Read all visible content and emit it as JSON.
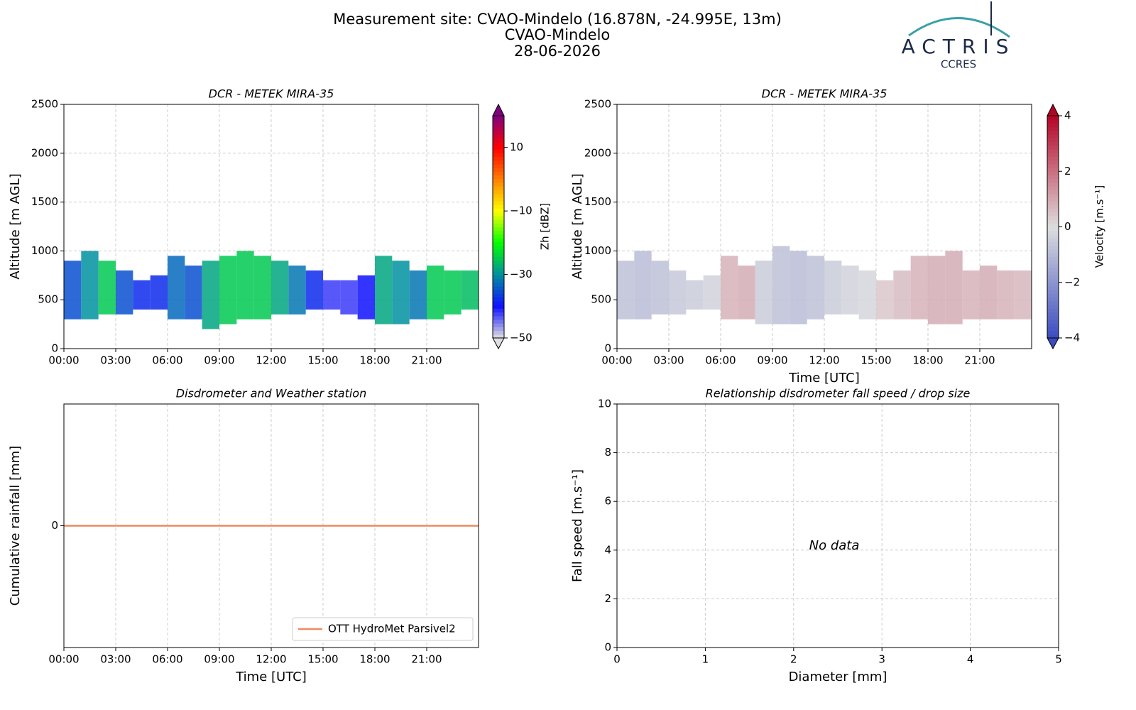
{
  "header": {
    "title": "Measurement site: CVAO-Mindelo (16.878N, -24.995E, 13m)",
    "subtitle": "CVAO-Mindelo",
    "date": "28-06-2026",
    "logo": "ACTRIS",
    "logo_sub": "CCRES"
  },
  "chart_data": [
    {
      "type": "heatmap",
      "title": "DCR - METEK MIRA-35",
      "ylabel": "Altitude [m AGL]",
      "x": [
        0.5,
        1.5,
        2.5,
        3.5,
        4.5,
        5.5,
        6.5,
        7.5,
        8.5,
        9.5,
        10.5,
        11.5,
        12.5,
        13.5,
        14.5,
        15.5,
        16.5,
        17.5,
        18.5,
        19.5,
        20.5,
        21.5,
        22.5,
        23.5
      ],
      "base": [
        300,
        300,
        350,
        350,
        400,
        400,
        300,
        300,
        200,
        250,
        300,
        300,
        350,
        350,
        400,
        400,
        350,
        300,
        250,
        250,
        300,
        300,
        350,
        400
      ],
      "top": [
        900,
        1000,
        900,
        800,
        700,
        750,
        950,
        850,
        900,
        950,
        1000,
        950,
        900,
        850,
        800,
        700,
        700,
        750,
        950,
        900,
        800,
        850,
        800,
        800
      ],
      "values": [
        -35,
        -30,
        -25,
        -35,
        -38,
        -38,
        -33,
        -35,
        -28,
        -25,
        -25,
        -25,
        -28,
        -32,
        -38,
        -42,
        -42,
        -40,
        -28,
        -30,
        -32,
        -25,
        -25,
        -26
      ],
      "xlim": [
        0,
        24
      ],
      "xticks": [
        {
          "value": 0,
          "label": "00:00"
        },
        {
          "value": 3,
          "label": "03:00"
        },
        {
          "value": 6,
          "label": "06:00"
        },
        {
          "value": 9,
          "label": "09:00"
        },
        {
          "value": 12,
          "label": "12:00"
        },
        {
          "value": 15,
          "label": "15:00"
        },
        {
          "value": 18,
          "label": "18:00"
        },
        {
          "value": 21,
          "label": "21:00"
        }
      ],
      "ylim": [
        0,
        2500
      ],
      "yticks": [
        0,
        500,
        1000,
        1500,
        2000,
        2500
      ],
      "grid": true,
      "colorbar_label": "Zh [dBZ]",
      "clim": [
        -50,
        20
      ],
      "cticks": [
        {
          "value": -50,
          "label": "−50"
        },
        {
          "value": -30,
          "label": "−30"
        },
        {
          "value": -10,
          "label": "−10"
        },
        10
      ],
      "colormap": [
        "#e0e0e0",
        "#1010ff",
        "#0090a0",
        "#00ff00",
        "#ffff00",
        "#ff8000",
        "#ff0000",
        "#800080"
      ]
    },
    {
      "type": "heatmap",
      "title": "DCR - METEK MIRA-35",
      "ylabel": "Altitude [m AGL]",
      "xlabel": "Time [UTC]",
      "x": [
        0.5,
        1.5,
        2.5,
        3.5,
        4.5,
        5.5,
        6.5,
        7.5,
        8.5,
        9.5,
        10.5,
        11.5,
        12.5,
        13.5,
        14.5,
        15.5,
        16.5,
        17.5,
        18.5,
        19.5,
        20.5,
        21.5,
        22.5,
        23.5
      ],
      "base": [
        300,
        300,
        350,
        350,
        400,
        400,
        300,
        300,
        250,
        250,
        250,
        300,
        350,
        350,
        300,
        300,
        300,
        300,
        250,
        250,
        300,
        300,
        300,
        300
      ],
      "top": [
        900,
        1000,
        900,
        800,
        700,
        750,
        950,
        850,
        900,
        1050,
        1000,
        950,
        900,
        850,
        800,
        700,
        800,
        950,
        950,
        1000,
        800,
        850,
        800,
        800
      ],
      "values": [
        -0.8,
        -0.9,
        -0.8,
        -0.6,
        -0.5,
        -0.3,
        0.8,
        0.9,
        -0.5,
        -0.8,
        -0.9,
        -0.8,
        -0.5,
        -0.3,
        -0.2,
        0.4,
        0.6,
        0.8,
        0.9,
        0.9,
        0.8,
        0.9,
        0.8,
        0.7
      ],
      "xlim": [
        0,
        24
      ],
      "xticks": [
        {
          "value": 0,
          "label": "00:00"
        },
        {
          "value": 3,
          "label": "03:00"
        },
        {
          "value": 6,
          "label": "06:00"
        },
        {
          "value": 9,
          "label": "09:00"
        },
        {
          "value": 12,
          "label": "12:00"
        },
        {
          "value": 15,
          "label": "15:00"
        },
        {
          "value": 18,
          "label": "18:00"
        },
        {
          "value": 21,
          "label": "21:00"
        }
      ],
      "ylim": [
        0,
        2500
      ],
      "yticks": [
        0,
        500,
        1000,
        1500,
        2000,
        2500
      ],
      "grid": true,
      "colorbar_label": "Velocity [m.s⁻¹]",
      "clim": [
        -4,
        4
      ],
      "cticks": [
        {
          "value": -4,
          "label": "−4"
        },
        {
          "value": -2,
          "label": "−2"
        },
        0,
        2,
        4
      ],
      "colormap": [
        "#3b4cc0",
        "#dddddd",
        "#b40426"
      ]
    },
    {
      "type": "line",
      "title": "Disdrometer and Weather station",
      "ylabel": "Cumulative rainfall [mm]",
      "xlabel": "Time [UTC]",
      "x": [
        0,
        24
      ],
      "series": [
        {
          "name": "OTT HydroMet Parsivel2",
          "color": "#ee8a62",
          "values": [
            0,
            0
          ]
        }
      ],
      "xlim": [
        0,
        24
      ],
      "xticks": [
        {
          "value": 0,
          "label": "00:00"
        },
        {
          "value": 3,
          "label": "03:00"
        },
        {
          "value": 6,
          "label": "06:00"
        },
        {
          "value": 9,
          "label": "09:00"
        },
        {
          "value": 12,
          "label": "12:00"
        },
        {
          "value": 15,
          "label": "15:00"
        },
        {
          "value": 18,
          "label": "18:00"
        },
        {
          "value": 21,
          "label": "21:00"
        }
      ],
      "ylim": [
        -0.055,
        0.055
      ],
      "yticks": [
        0
      ],
      "grid": true,
      "legend": "lower right"
    },
    {
      "type": "scatter",
      "title": "Relationship disdrometer fall speed / drop size",
      "ylabel": "Fall speed [m.s⁻¹]",
      "xlabel": "Diameter [mm]",
      "annotation": "No data",
      "xlim": [
        0,
        5
      ],
      "xticks": [
        0,
        1,
        2,
        3,
        4,
        5
      ],
      "ylim": [
        0,
        10
      ],
      "yticks": [
        0,
        2,
        4,
        6,
        8,
        10
      ],
      "grid": true
    }
  ]
}
